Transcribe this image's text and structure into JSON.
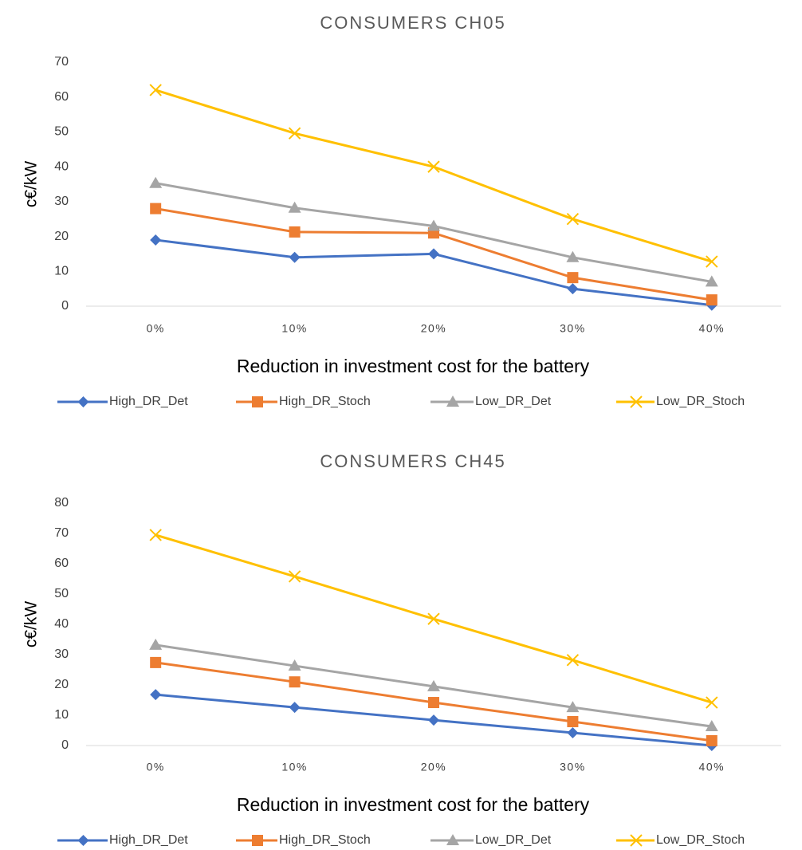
{
  "chart_data": [
    {
      "type": "line",
      "title": "CONSUMERS CH05",
      "x_label": "Reduction in investment cost for the battery",
      "y_label": "c€/kW",
      "categories": [
        "0%",
        "10%",
        "20%",
        "30%",
        "40%"
      ],
      "ylim": [
        0,
        70
      ],
      "yticks": [
        0,
        10,
        20,
        30,
        40,
        50,
        60,
        70
      ],
      "grid": false,
      "legend": "bottom",
      "series": [
        {
          "name": "High_DR_Det",
          "color": "#4472c4",
          "marker": "diamond",
          "values": [
            19,
            14,
            15,
            5,
            0.3
          ]
        },
        {
          "name": "High_DR_Stoch",
          "color": "#ed7d31",
          "marker": "square",
          "values": [
            28,
            21.3,
            21,
            8.2,
            1.8
          ]
        },
        {
          "name": "Low_DR_Det",
          "color": "#a5a5a5",
          "marker": "triangle",
          "values": [
            35.3,
            28.2,
            23,
            14,
            7
          ]
        },
        {
          "name": "Low_DR_Stoch",
          "color": "#ffc000",
          "marker": "x",
          "values": [
            62,
            49.6,
            40,
            25,
            12.8
          ]
        }
      ]
    },
    {
      "type": "line",
      "title": "CONSUMERS CH45",
      "x_label": "Reduction in investment cost for the battery",
      "y_label": "c€/kW",
      "categories": [
        "0%",
        "10%",
        "20%",
        "30%",
        "40%"
      ],
      "ylim": [
        0,
        80
      ],
      "yticks": [
        0,
        10,
        20,
        30,
        40,
        50,
        60,
        70,
        80
      ],
      "grid": false,
      "legend": "bottom",
      "series": [
        {
          "name": "High_DR_Det",
          "color": "#4472c4",
          "marker": "diamond",
          "values": [
            16.8,
            12.6,
            8.4,
            4.2,
            0
          ]
        },
        {
          "name": "High_DR_Stoch",
          "color": "#ed7d31",
          "marker": "square",
          "values": [
            27.4,
            21,
            14.2,
            7.9,
            1.6
          ]
        },
        {
          "name": "Low_DR_Det",
          "color": "#a5a5a5",
          "marker": "triangle",
          "values": [
            33.2,
            26.3,
            19.5,
            12.6,
            6.3
          ]
        },
        {
          "name": "Low_DR_Stoch",
          "color": "#ffc000",
          "marker": "x",
          "values": [
            69.5,
            55.8,
            41.8,
            28.2,
            14.2
          ]
        }
      ]
    }
  ]
}
